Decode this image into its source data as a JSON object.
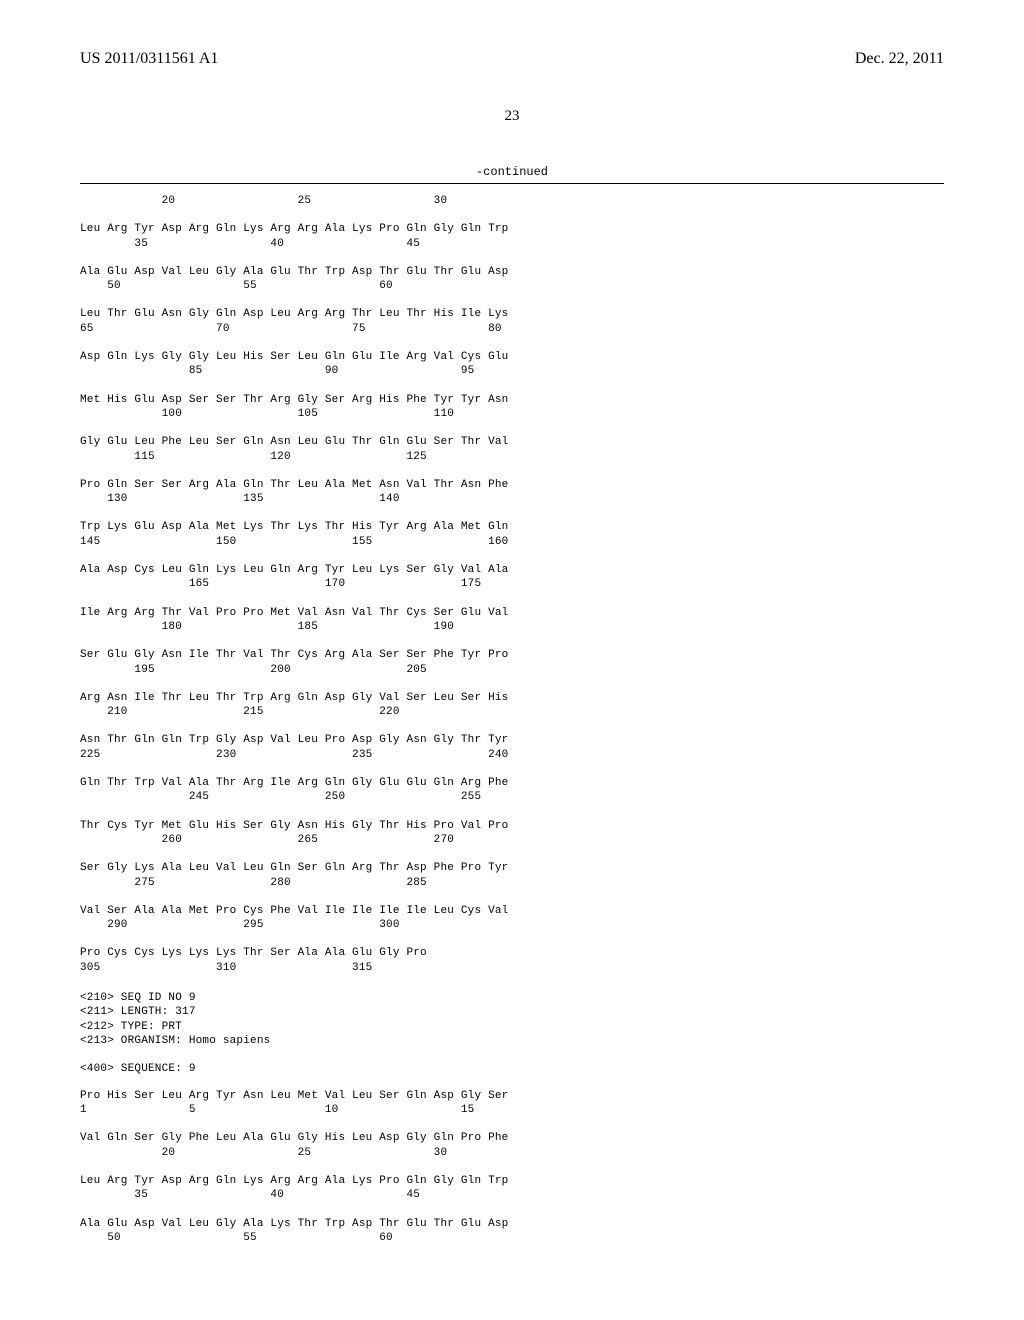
{
  "header": {
    "pub_number": "US 2011/0311561 A1",
    "pub_date": "Dec. 22, 2011"
  },
  "page_number": "23",
  "continued_label": "-continued",
  "sequence8": {
    "rows": [
      {
        "aa": "            20                  25                  30",
        "num": ""
      },
      {
        "aa": "Leu Arg Tyr Asp Arg Gln Lys Arg Arg Ala Lys Pro Gln Gly Gln Trp",
        "num": "        35                  40                  45"
      },
      {
        "aa": "Ala Glu Asp Val Leu Gly Ala Glu Thr Trp Asp Thr Glu Thr Glu Asp",
        "num": "    50                  55                  60"
      },
      {
        "aa": "Leu Thr Glu Asn Gly Gln Asp Leu Arg Arg Thr Leu Thr His Ile Lys",
        "num": "65                  70                  75                  80"
      },
      {
        "aa": "Asp Gln Lys Gly Gly Leu His Ser Leu Gln Glu Ile Arg Val Cys Glu",
        "num": "                85                  90                  95"
      },
      {
        "aa": "Met His Glu Asp Ser Ser Thr Arg Gly Ser Arg His Phe Tyr Tyr Asn",
        "num": "            100                 105                 110"
      },
      {
        "aa": "Gly Glu Leu Phe Leu Ser Gln Asn Leu Glu Thr Gln Glu Ser Thr Val",
        "num": "        115                 120                 125"
      },
      {
        "aa": "Pro Gln Ser Ser Arg Ala Gln Thr Leu Ala Met Asn Val Thr Asn Phe",
        "num": "    130                 135                 140"
      },
      {
        "aa": "Trp Lys Glu Asp Ala Met Lys Thr Lys Thr His Tyr Arg Ala Met Gln",
        "num": "145                 150                 155                 160"
      },
      {
        "aa": "Ala Asp Cys Leu Gln Lys Leu Gln Arg Tyr Leu Lys Ser Gly Val Ala",
        "num": "                165                 170                 175"
      },
      {
        "aa": "Ile Arg Arg Thr Val Pro Pro Met Val Asn Val Thr Cys Ser Glu Val",
        "num": "            180                 185                 190"
      },
      {
        "aa": "Ser Glu Gly Asn Ile Thr Val Thr Cys Arg Ala Ser Ser Phe Tyr Pro",
        "num": "        195                 200                 205"
      },
      {
        "aa": "Arg Asn Ile Thr Leu Thr Trp Arg Gln Asp Gly Val Ser Leu Ser His",
        "num": "    210                 215                 220"
      },
      {
        "aa": "Asn Thr Gln Gln Trp Gly Asp Val Leu Pro Asp Gly Asn Gly Thr Tyr",
        "num": "225                 230                 235                 240"
      },
      {
        "aa": "Gln Thr Trp Val Ala Thr Arg Ile Arg Gln Gly Glu Glu Gln Arg Phe",
        "num": "                245                 250                 255"
      },
      {
        "aa": "Thr Cys Tyr Met Glu His Ser Gly Asn His Gly Thr His Pro Val Pro",
        "num": "            260                 265                 270"
      },
      {
        "aa": "Ser Gly Lys Ala Leu Val Leu Gln Ser Gln Arg Thr Asp Phe Pro Tyr",
        "num": "        275                 280                 285"
      },
      {
        "aa": "Val Ser Ala Ala Met Pro Cys Phe Val Ile Ile Ile Ile Leu Cys Val",
        "num": "    290                 295                 300"
      },
      {
        "aa": "Pro Cys Cys Lys Lys Lys Thr Ser Ala Ala Glu Gly Pro",
        "num": "305                 310                 315"
      }
    ]
  },
  "seq9_header": [
    "<210> SEQ ID NO 9",
    "<211> LENGTH: 317",
    "<212> TYPE: PRT",
    "<213> ORGANISM: Homo sapiens",
    "",
    "<400> SEQUENCE: 9"
  ],
  "sequence9": {
    "rows": [
      {
        "aa": "Pro His Ser Leu Arg Tyr Asn Leu Met Val Leu Ser Gln Asp Gly Ser",
        "num": "1               5                   10                  15"
      },
      {
        "aa": "Val Gln Ser Gly Phe Leu Ala Glu Gly His Leu Asp Gly Gln Pro Phe",
        "num": "            20                  25                  30"
      },
      {
        "aa": "Leu Arg Tyr Asp Arg Gln Lys Arg Arg Ala Lys Pro Gln Gly Gln Trp",
        "num": "        35                  40                  45"
      },
      {
        "aa": "Ala Glu Asp Val Leu Gly Ala Lys Thr Trp Asp Thr Glu Thr Glu Asp",
        "num": "    50                  55                  60"
      }
    ]
  }
}
